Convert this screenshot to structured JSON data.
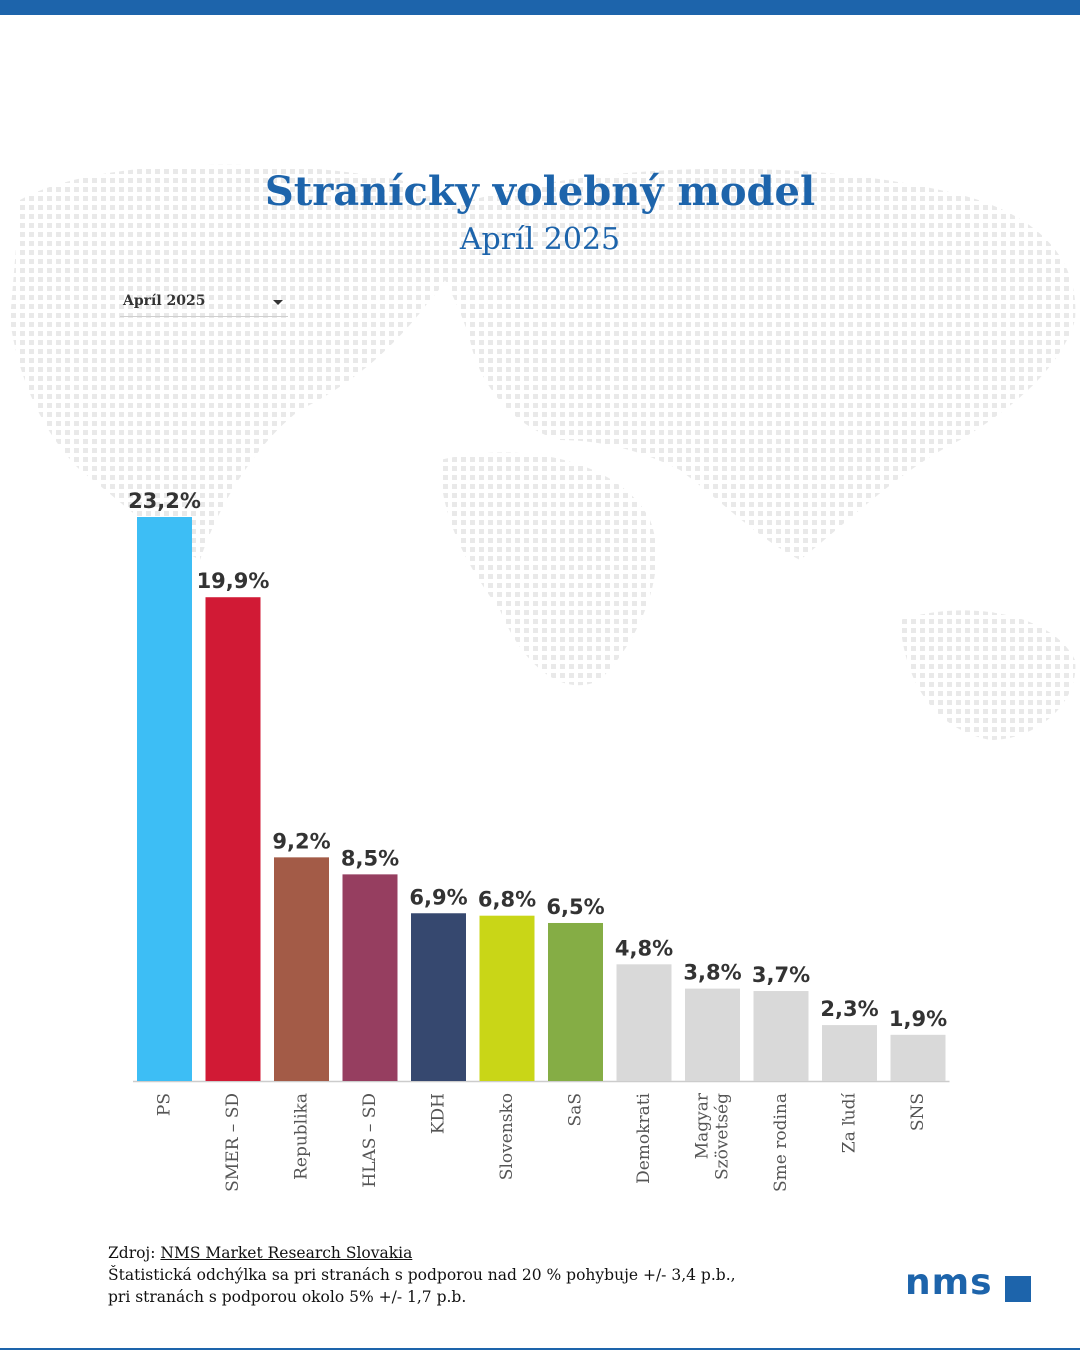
{
  "header": {
    "title": "Stranícky volebný model",
    "subtitle": "Apríl 2025"
  },
  "filter": {
    "selected": "Apríl 2025"
  },
  "chart_data": {
    "type": "bar",
    "title": "Stranícky volebný model",
    "subtitle": "Apríl 2025",
    "xlabel": "",
    "ylabel": "",
    "ylim": [
      0,
      23.2
    ],
    "grid": false,
    "categories": [
      "PS",
      "SMER – SD",
      "Republika",
      "HLAS – SD",
      "KDH",
      "Slovensko",
      "SaS",
      "Demokrati",
      "Magyar Szövetség",
      "Sme rodina",
      "Za ľudí",
      "SNS"
    ],
    "category_lines": [
      [
        "PS"
      ],
      [
        "SMER – SD"
      ],
      [
        "Republika"
      ],
      [
        "HLAS – SD"
      ],
      [
        "KDH"
      ],
      [
        "Slovensko"
      ],
      [
        "SaS"
      ],
      [
        "Demokrati"
      ],
      [
        "Magyar",
        "Szövetség"
      ],
      [
        "Sme rodina"
      ],
      [
        "Za ľudí"
      ],
      [
        "SNS"
      ]
    ],
    "values": [
      23.2,
      19.9,
      9.2,
      8.5,
      6.9,
      6.8,
      6.5,
      4.8,
      3.8,
      3.7,
      2.3,
      1.9
    ],
    "value_labels": [
      "23,2%",
      "19,9%",
      "9,2%",
      "8,5%",
      "6,9%",
      "6,8%",
      "6,5%",
      "4,8%",
      "3,8%",
      "3,7%",
      "2,3%",
      "1,9%"
    ],
    "colors": [
      "#3dbef5",
      "#d11a35",
      "#a35b47",
      "#963e60",
      "#36486f",
      "#c9d617",
      "#85ad45",
      "#d9d9d9",
      "#d9d9d9",
      "#d9d9d9",
      "#d9d9d9",
      "#d9d9d9"
    ]
  },
  "footer": {
    "source_prefix": "Zdroj: ",
    "source_link": "NMS Market Research Slovakia",
    "note_line1": "Štatistická odchýlka sa pri stranách s podporou nad 20 % pohybuje +/- 3,4 p.b.,",
    "note_line2": "pri stranách s podporou okolo 5% +/- 1,7 p.b."
  },
  "logo": {
    "text": "nms"
  }
}
